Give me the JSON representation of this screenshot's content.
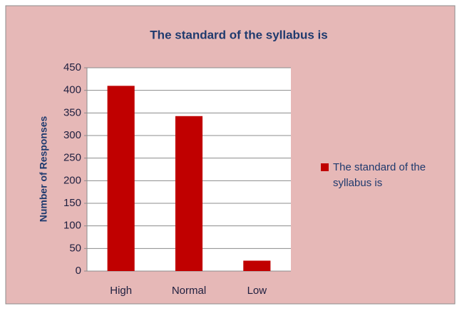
{
  "chart_data": {
    "type": "bar",
    "title": "The standard of the syllabus is",
    "y_label": "Number of Responses",
    "categories": [
      "High",
      "Normal",
      "Low"
    ],
    "series": [
      {
        "name": "The standard of the syllabus is",
        "color": "#c00000",
        "values": [
          410,
          343,
          23
        ]
      }
    ],
    "ylim": [
      0,
      450
    ],
    "yticks": [
      0,
      50,
      100,
      150,
      200,
      250,
      300,
      350,
      400,
      450
    ],
    "grid": true,
    "legend": "right"
  }
}
